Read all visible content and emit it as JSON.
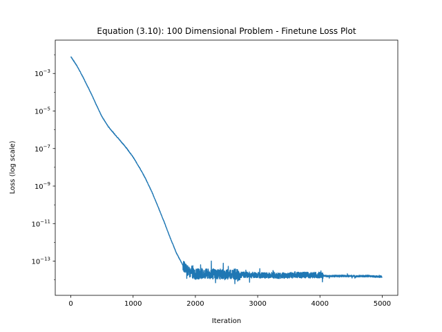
{
  "chart_data": {
    "type": "line",
    "title": "Equation (3.10): 100 Dimensional Problem - Finetune Loss Plot",
    "xlabel": "Iteration",
    "ylabel": "Loss (log scale)",
    "xlim": [
      -250,
      5250
    ],
    "ylim": [
      1.5e-15,
      0.06
    ],
    "yscale": "log",
    "grid": false,
    "xticks": [
      0,
      1000,
      2000,
      3000,
      4000,
      5000
    ],
    "xtick_labels": [
      "0",
      "1000",
      "2000",
      "3000",
      "4000",
      "5000"
    ],
    "yticks": [
      1e-13,
      1e-11,
      1e-09,
      1e-07,
      1e-05,
      0.001
    ],
    "ytick_labels": [
      {
        "base": "10",
        "exp": "−13"
      },
      {
        "base": "10",
        "exp": "−11"
      },
      {
        "base": "10",
        "exp": "−9"
      },
      {
        "base": "10",
        "exp": "−7"
      },
      {
        "base": "10",
        "exp": "−5"
      },
      {
        "base": "10",
        "exp": "−3"
      }
    ],
    "series": [
      {
        "color": "#1f77b4",
        "x": [
          0,
          100,
          200,
          300,
          400,
          500,
          600,
          700,
          800,
          900,
          1000,
          1100,
          1200,
          1300,
          1400,
          1500,
          1600,
          1700,
          1800,
          1900,
          2000,
          2100,
          2200,
          2300,
          2400,
          2500,
          2600,
          2700,
          2800,
          2900,
          3000,
          3100,
          3200,
          3300,
          3400,
          3500,
          3600,
          3700,
          3800,
          3900,
          4000,
          4100,
          4200,
          4300,
          4400,
          4500,
          4600,
          4700,
          4800,
          4900,
          5000
        ],
        "y": [
          0.008,
          0.0025,
          0.0006,
          0.00013,
          2.5e-05,
          5e-06,
          1.5e-06,
          6e-07,
          2.5e-07,
          1e-07,
          3.5e-08,
          1e-08,
          2.5e-09,
          5e-10,
          8e-11,
          1.2e-11,
          1.6e-12,
          2.5e-13,
          6e-14,
          2.5e-14,
          2e-14,
          2.2e-14,
          2e-14,
          2.1e-14,
          2e-14,
          1.9e-14,
          2.2e-14,
          1.8e-14,
          1.9e-14,
          1.8e-14,
          1.8e-14,
          1.7e-14,
          1.8e-14,
          1.7e-14,
          1.7e-14,
          1.7e-14,
          1.9e-14,
          1.8e-14,
          1.8e-14,
          1.8e-14,
          1.8e-14,
          1.6e-14,
          1.6e-14,
          1.6e-14,
          1.6e-14,
          1.6e-14,
          1.6e-14,
          1.6e-14,
          1.6e-14,
          1.5e-14,
          1.5e-14
        ]
      }
    ]
  }
}
